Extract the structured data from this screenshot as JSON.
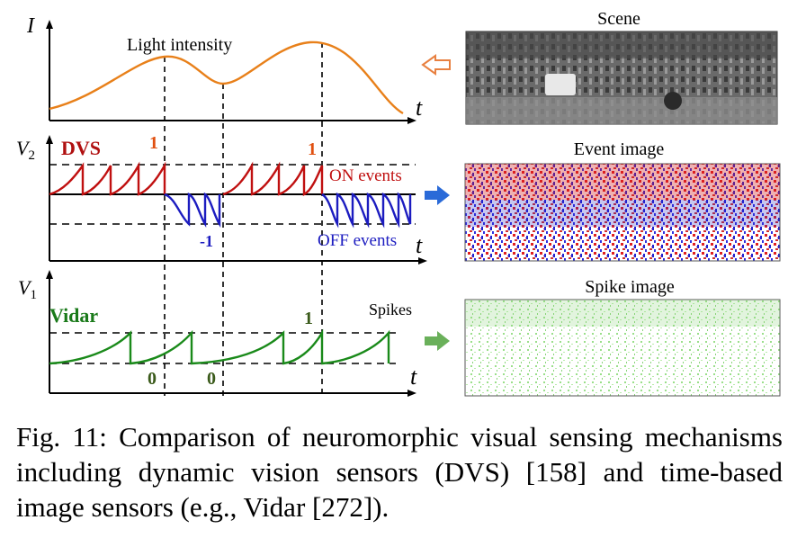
{
  "figure": {
    "panels": {
      "intensity": {
        "y_axis_label": "I",
        "x_axis_label": "t",
        "curve_label": "Light intensity",
        "curve_color": "#e8801a"
      },
      "dvs": {
        "y_axis_label": "V",
        "y_axis_subscript": "2",
        "x_axis_label": "t",
        "title": "DVS",
        "title_color": "#b01010",
        "on_color": "#c01010",
        "off_color": "#1c1cc0",
        "on_events_label": "ON events",
        "off_events_label": "OFF events",
        "marker_on_1": "1",
        "marker_on_2": "1",
        "marker_off": "-1",
        "marker_on_color": "#e05010",
        "marker_off_color": "#1c1cc0"
      },
      "vidar": {
        "y_axis_label": "V",
        "y_axis_subscript": "1",
        "x_axis_label": "t",
        "title": "Vidar",
        "title_color": "#1a7a1a",
        "wave_color": "#1a8a1a",
        "spikes_label": "Spikes",
        "marker_1": "1",
        "marker_0_a": "0",
        "marker_0_b": "0",
        "marker_color": "#3a5a1a"
      }
    },
    "images": {
      "scene_title": "Scene",
      "event_title": "Event image",
      "spike_title": "Spike image"
    },
    "arrows": {
      "scene_arrow_color": "#e88040",
      "event_arrow_color": "#2a6ad8",
      "spike_arrow_color": "#6ab05a"
    }
  },
  "caption": {
    "text": "Fig. 11: Comparison of neuromorphic visual sensing mechanisms including dynamic vision sensors (DVS) [158] and time-based image sensors (e.g., Vidar [272])."
  }
}
